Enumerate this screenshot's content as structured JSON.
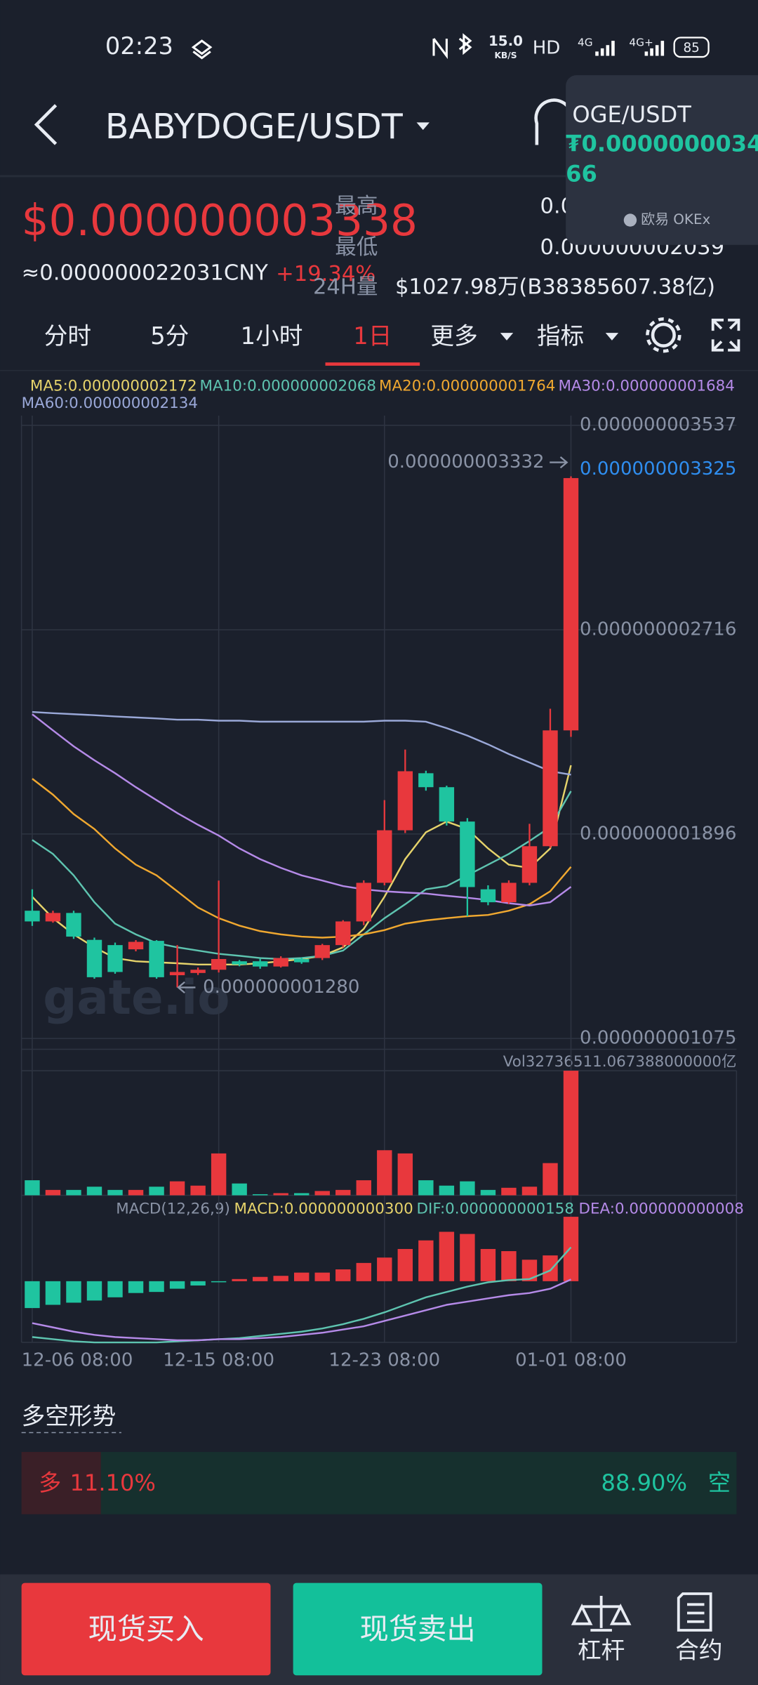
{
  "status_bar": {
    "time": "02:23",
    "speed": "15.0",
    "speed_unit": "KB/S",
    "hd": "HD",
    "net1": "4G",
    "net2": "4G+",
    "battery": "85"
  },
  "header": {
    "pair": "BABYDOGE/USDT"
  },
  "popup": {
    "pair": "OGE/USDT",
    "price_line1": "₮0.0000000034",
    "price_line2": "66",
    "exchange": "欧易 OKEx"
  },
  "ticker": {
    "price": "$0.000000003338",
    "cny": "≈0.000000022031CNY",
    "change": "+19.34%",
    "high_label": "最高",
    "high": "0.0",
    "low_label": "最低",
    "low": "0.000000002039",
    "vol_label": "24H量",
    "vol": "$1027.98万(B38385607.38亿)"
  },
  "tabs": [
    "分时",
    "5分",
    "1小时",
    "1日",
    "更多",
    "指标"
  ],
  "active_tab": 3,
  "chart_data": {
    "type": "candlestick",
    "ylim": [
      1.075e-09,
      3.537e-09
    ],
    "yticks": [
      {
        "value": 3.537e-09,
        "label": "0.000000003537"
      },
      {
        "value": 2.716e-09,
        "label": "0.000000002716"
      },
      {
        "value": 1.896e-09,
        "label": "0.000000001896"
      },
      {
        "value": 1.075e-09,
        "label": "0.000000001075"
      }
    ],
    "grid": true,
    "xticks": [
      {
        "value": 0,
        "label": "12-06 08:00"
      },
      {
        "value": 9,
        "label": "12-15 08:00"
      },
      {
        "value": 17,
        "label": "12-23 08:00"
      },
      {
        "value": 26,
        "label": "01-01 08:00"
      }
    ],
    "open": [
      1.588e-09,
      1.545e-09,
      1.579e-09,
      1.471e-09,
      1.45e-09,
      1.433e-09,
      1.467e-09,
      1.329e-09,
      1.338e-09,
      1.351e-09,
      1.385e-09,
      1.385e-09,
      1.364e-09,
      1.394e-09,
      1.398e-09,
      1.45e-09,
      1.545e-09,
      1.7e-09,
      1.911e-09,
      2.14e-09,
      2.084e-09,
      1.946e-09,
      1.674e-09,
      1.622e-09,
      1.7e-09,
      1.847e-09,
      2.312e-09
    ],
    "close": [
      1.545e-09,
      1.579e-09,
      1.484e-09,
      1.321e-09,
      1.342e-09,
      1.463e-09,
      1.321e-09,
      1.342e-09,
      1.351e-09,
      1.394e-09,
      1.372e-09,
      1.364e-09,
      1.398e-09,
      1.381e-09,
      1.45e-09,
      1.545e-09,
      1.7e-09,
      1.911e-09,
      2.148e-09,
      2.084e-09,
      1.946e-09,
      1.683e-09,
      1.622e-09,
      1.7e-09,
      1.847e-09,
      2.312e-09,
      3.325e-09
    ],
    "high": [
      1.674e-09,
      1.588e-09,
      1.588e-09,
      1.48e-09,
      1.46e-09,
      1.47e-09,
      1.47e-09,
      1.45e-09,
      1.36e-09,
      1.709e-09,
      1.39e-09,
      1.395e-09,
      1.405e-09,
      1.4e-09,
      1.455e-09,
      1.55e-09,
      1.71e-09,
      2.032e-09,
      2.235e-09,
      2.15e-09,
      2.09e-09,
      1.96e-09,
      1.69e-09,
      1.71e-09,
      1.937e-09,
      2.399e-09,
      3.332e-09
    ],
    "low": [
      1.527e-09,
      1.54e-09,
      1.475e-09,
      1.315e-09,
      1.335e-09,
      1.425e-09,
      1.315e-09,
      1.28e-09,
      1.33e-09,
      1.34e-09,
      1.365e-09,
      1.355e-09,
      1.36e-09,
      1.375e-09,
      1.39e-09,
      1.44e-09,
      1.53e-09,
      1.69e-09,
      1.9e-09,
      2.07e-09,
      1.93e-09,
      1.566e-09,
      1.61e-09,
      1.615e-09,
      1.69e-09,
      1.84e-09,
      2.286e-09
    ],
    "up_color": "#e8383d",
    "down_color": "#1fc4a0",
    "current_price": {
      "value": 3.325e-09,
      "label": "0.000000003325"
    },
    "high_marker": {
      "value": 3.332e-09,
      "label": "0.000000003332"
    },
    "low_marker": {
      "value": 1.28e-09,
      "label": "0.000000001280"
    },
    "series": [
      {
        "label": "MA5:0.000000002172",
        "color": "#e6d36b",
        "values": [
          1.644e-09,
          1.558e-09,
          1.493e-09,
          1.441e-09,
          1.398e-09,
          1.385e-09,
          1.381e-09,
          1.377e-09,
          1.372e-09,
          1.372e-09,
          1.372e-09,
          1.377e-09,
          1.385e-09,
          1.394e-09,
          1.407e-09,
          1.441e-09,
          1.515e-09,
          1.644e-09,
          1.795e-09,
          1.903e-09,
          1.946e-09,
          1.916e-09,
          1.838e-09,
          1.773e-09,
          1.76e-09,
          1.838e-09,
          2.172e-09
        ]
      },
      {
        "label": "MA10:0.000000002068",
        "color": "#5ec4b0",
        "values": [
          1.872e-09,
          1.816e-09,
          1.73e-09,
          1.622e-09,
          1.536e-09,
          1.493e-09,
          1.458e-09,
          1.441e-09,
          1.428e-09,
          1.415e-09,
          1.407e-09,
          1.398e-09,
          1.394e-09,
          1.398e-09,
          1.407e-09,
          1.428e-09,
          1.493e-09,
          1.558e-09,
          1.614e-09,
          1.674e-09,
          1.687e-09,
          1.73e-09,
          1.773e-09,
          1.816e-09,
          1.868e-09,
          1.924e-09,
          2.068e-09
        ]
      },
      {
        "label": "MA20:0.000000001764",
        "color": "#f0a830",
        "values": [
          2.118e-09,
          2.054e-09,
          1.976e-09,
          1.916e-09,
          1.838e-09,
          1.773e-09,
          1.73e-09,
          1.666e-09,
          1.601e-09,
          1.558e-09,
          1.528e-09,
          1.506e-09,
          1.493e-09,
          1.484e-09,
          1.48e-09,
          1.484e-09,
          1.493e-09,
          1.51e-09,
          1.536e-09,
          1.549e-09,
          1.558e-09,
          1.566e-09,
          1.571e-09,
          1.588e-09,
          1.614e-09,
          1.666e-09,
          1.764e-09
        ]
      },
      {
        "label": "MA30:0.000000001684",
        "color": "#b58ae8",
        "values": [
          2.377e-09,
          2.312e-09,
          2.248e-09,
          2.192e-09,
          2.14e-09,
          2.084e-09,
          2.032e-09,
          1.98e-09,
          1.933e-09,
          1.89e-09,
          1.838e-09,
          1.795e-09,
          1.76e-09,
          1.73e-09,
          1.709e-09,
          1.687e-09,
          1.674e-09,
          1.666e-09,
          1.661e-09,
          1.657e-09,
          1.648e-09,
          1.64e-09,
          1.631e-09,
          1.618e-09,
          1.609e-09,
          1.622e-09,
          1.684e-09
        ]
      },
      {
        "label": "MA60:0.000000002134",
        "color": "#9aa8d8",
        "values": [
          2.386e-09,
          2.381e-09,
          2.377e-09,
          2.373e-09,
          2.368e-09,
          2.364e-09,
          2.36e-09,
          2.355e-09,
          2.355e-09,
          2.351e-09,
          2.351e-09,
          2.347e-09,
          2.347e-09,
          2.347e-09,
          2.347e-09,
          2.347e-09,
          2.347e-09,
          2.351e-09,
          2.351e-09,
          2.347e-09,
          2.321e-09,
          2.291e-09,
          2.256e-09,
          2.217e-09,
          2.183e-09,
          2.148e-09,
          2.134e-09
        ]
      }
    ],
    "watermark": "gate.io",
    "volume": {
      "label": "Vol32736511.067388000000亿",
      "ylim": [
        0,
        32736511.067388
      ],
      "values": [
        3948000,
        1410000,
        1410000,
        2256000,
        1410000,
        1410000,
        2256000,
        3666000,
        2538000,
        10998000,
        3102000,
        282000,
        564000,
        564000,
        1128000,
        1410000,
        3948000,
        11844000,
        10998000,
        3948000,
        2538000,
        3666000,
        1410000,
        1974000,
        2256000,
        8460000,
        32736511.067388
      ]
    },
    "macd": {
      "title": "MACD(12,26,9)",
      "ylim": [
        -2.85e-10,
        3e-10
      ],
      "legend": [
        {
          "label": "MACD:0.000000000300",
          "color": "#e6d36b"
        },
        {
          "label": "DIF:0.000000000158",
          "color": "#5ec4b0"
        },
        {
          "label": "DEA:0.000000000008",
          "color": "#b58ae8"
        }
      ],
      "hist": [
        -1.25e-10,
        -1.1e-10,
        -1e-10,
        -9e-11,
        -7.5e-11,
        -5.5e-11,
        -5e-11,
        -3.5e-11,
        -2e-11,
        -5e-12,
        1e-11,
        2e-11,
        2.5e-11,
        4e-11,
        4e-11,
        5.5e-11,
        8.5e-11,
        1.1e-10,
        1.5e-10,
        1.9e-10,
        2.3e-10,
        2.2e-10,
        1.5e-10,
        1.4e-10,
        1e-10,
        1.2e-10,
        3e-10
      ],
      "dif": [
        -2.6e-10,
        -2.7e-10,
        -2.8e-10,
        -2.85e-10,
        -2.85e-10,
        -2.85e-10,
        -2.85e-10,
        -2.8e-10,
        -2.75e-10,
        -2.7e-10,
        -2.65e-10,
        -2.55e-10,
        -2.45e-10,
        -2.35e-10,
        -2.2e-10,
        -2e-10,
        -1.75e-10,
        -1.45e-10,
        -1.1e-10,
        -7.5e-11,
        -5e-11,
        -2.5e-11,
        -5e-12,
        5e-12,
        1e-11,
        5e-11,
        1.58e-10
      ],
      "dea": [
        -1.95e-10,
        -2.15e-10,
        -2.35e-10,
        -2.5e-10,
        -2.6e-10,
        -2.65e-10,
        -2.7e-10,
        -2.75e-10,
        -2.75e-10,
        -2.7e-10,
        -2.7e-10,
        -2.65e-10,
        -2.6e-10,
        -2.5e-10,
        -2.4e-10,
        -2.25e-10,
        -2.1e-10,
        -1.85e-10,
        -1.6e-10,
        -1.35e-10,
        -1.1e-10,
        -9.5e-11,
        -8e-11,
        -6.5e-11,
        -5.5e-11,
        -3.5e-11,
        8e-12
      ]
    }
  },
  "sentiment": {
    "title": "多空形势",
    "long_label": "多",
    "long_pct": 11.1,
    "long_text": "11.10%",
    "short_label": "空",
    "short_pct": 88.9,
    "short_text": "88.90%"
  },
  "bottom_bar": {
    "buy": "现货买入",
    "sell": "现货卖出",
    "margin": "杠杆",
    "futures": "合约"
  }
}
